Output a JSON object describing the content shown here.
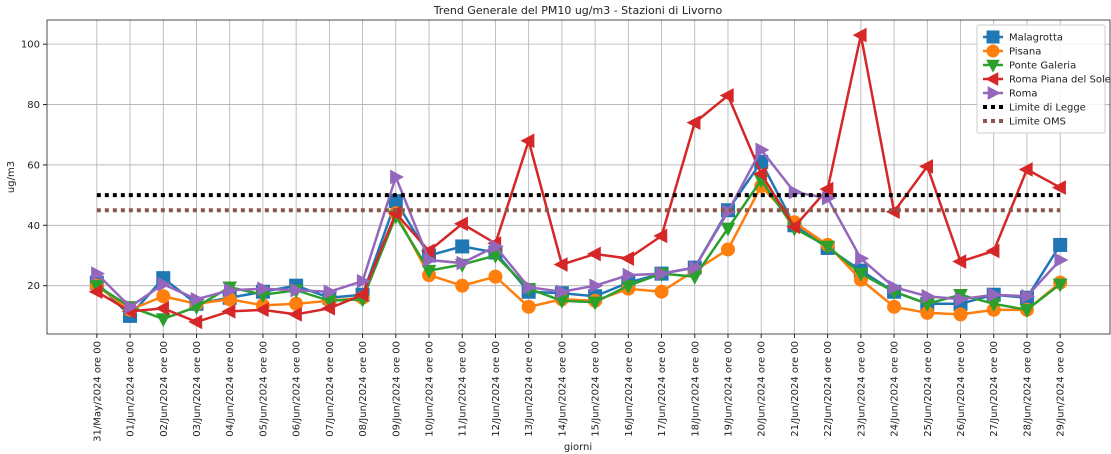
{
  "chart_data": {
    "type": "line",
    "title": "Trend Generale del PM10 ug/m3 - Stazioni di Livorno",
    "xlabel": "giorni",
    "ylabel": "ug/m3",
    "categories": [
      "31/May/2024 ore 00",
      "01/Jun/2024 ore 00",
      "02/Jun/2024 ore 00",
      "03/Jun/2024 ore 00",
      "04/Jun/2024 ore 00",
      "05/Jun/2024 ore 00",
      "06/Jun/2024 ore 00",
      "07/Jun/2024 ore 00",
      "08/Jun/2024 ore 00",
      "09/Jun/2024 ore 00",
      "10/Jun/2024 ore 00",
      "11/Jun/2024 ore 00",
      "12/Jun/2024 ore 00",
      "13/Jun/2024 ore 00",
      "14/Jun/2024 ore 00",
      "15/Jun/2024 ore 00",
      "16/Jun/2024 ore 00",
      "17/Jun/2024 ore 00",
      "18/Jun/2024 ore 00",
      "19/Jun/2024 ore 00",
      "20/Jun/2024 ore 00",
      "21/Jun/2024 ore 00",
      "22/Jun/2024 ore 00",
      "23/Jun/2024 ore 00",
      "24/Jun/2024 ore 00",
      "25/Jun/2024 ore 00",
      "26/Jun/2024 ore 00",
      "27/Jun/2024 ore 00",
      "28/Jun/2024 ore 00",
      "29/Jun/2024 ore 00"
    ],
    "series": [
      {
        "name": "Malagrotta",
        "color": "#1f77b4",
        "marker": "square",
        "values": [
          21,
          10,
          22.5,
          14,
          16,
          18,
          20,
          16,
          17,
          48,
          30,
          33,
          31,
          18,
          17.5,
          16.5,
          21,
          24,
          26,
          45,
          61,
          40,
          32.5,
          25,
          18,
          14,
          14,
          17,
          16,
          33.5
        ]
      },
      {
        "name": "Pisana",
        "color": "#ff7f0e",
        "marker": "circle",
        "values": [
          20,
          12,
          16.5,
          14,
          15.5,
          13.5,
          14,
          15,
          16,
          44,
          23.5,
          20,
          23,
          13,
          15.5,
          15,
          19,
          18,
          25,
          32,
          53,
          41,
          33.5,
          22,
          13,
          11,
          10.5,
          12,
          12,
          21
        ]
      },
      {
        "name": "Ponte Galeria",
        "color": "#2ca02c",
        "marker": "triangle-down",
        "values": [
          20,
          13,
          9,
          13,
          19.5,
          17,
          18.5,
          15,
          15.5,
          43,
          25,
          27,
          30,
          19,
          15,
          14.5,
          20,
          24,
          23,
          39,
          55,
          39,
          33,
          24,
          18,
          14,
          17,
          14,
          12,
          20.5
        ]
      },
      {
        "name": "Roma Piana del Sole",
        "color": "#d62728",
        "marker": "triangle-left",
        "values": [
          18,
          11.5,
          12.5,
          8,
          11.5,
          12,
          10.5,
          12.5,
          17,
          44,
          31.5,
          40.5,
          34,
          68,
          27,
          30.5,
          29,
          36.5,
          74,
          83,
          57,
          39.5,
          52,
          103,
          44.5,
          59.5,
          28,
          31.5,
          58.5,
          52.5
        ]
      },
      {
        "name": "Roma",
        "color": "#9467bd",
        "marker": "triangle-right",
        "values": [
          24,
          13,
          20.5,
          15.5,
          18.5,
          19,
          18.5,
          18,
          21.5,
          56,
          28.5,
          27.5,
          33,
          19.5,
          18,
          20,
          23.5,
          24,
          26,
          44.5,
          65,
          51,
          49,
          29,
          19.5,
          16.5,
          15.5,
          17,
          16.5,
          28.5
        ]
      },
      {
        "name": "Limite di Legge",
        "color": "#000000",
        "linestyle": "dotted",
        "values": [
          50,
          50,
          50,
          50,
          50,
          50,
          50,
          50,
          50,
          50,
          50,
          50,
          50,
          50,
          50,
          50,
          50,
          50,
          50,
          50,
          50,
          50,
          50,
          50,
          50,
          50,
          50,
          50,
          50,
          50
        ]
      },
      {
        "name": "Limite OMS",
        "color": "#8c564b",
        "linestyle": "dotted",
        "values": [
          45,
          45,
          45,
          45,
          45,
          45,
          45,
          45,
          45,
          45,
          45,
          45,
          45,
          45,
          45,
          45,
          45,
          45,
          45,
          45,
          45,
          45,
          45,
          45,
          45,
          45,
          45,
          45,
          45,
          45
        ]
      }
    ],
    "ylim": [
      4,
      108
    ],
    "yticks": [
      20,
      40,
      60,
      80,
      100
    ],
    "grid": true,
    "legend": "upper right"
  }
}
